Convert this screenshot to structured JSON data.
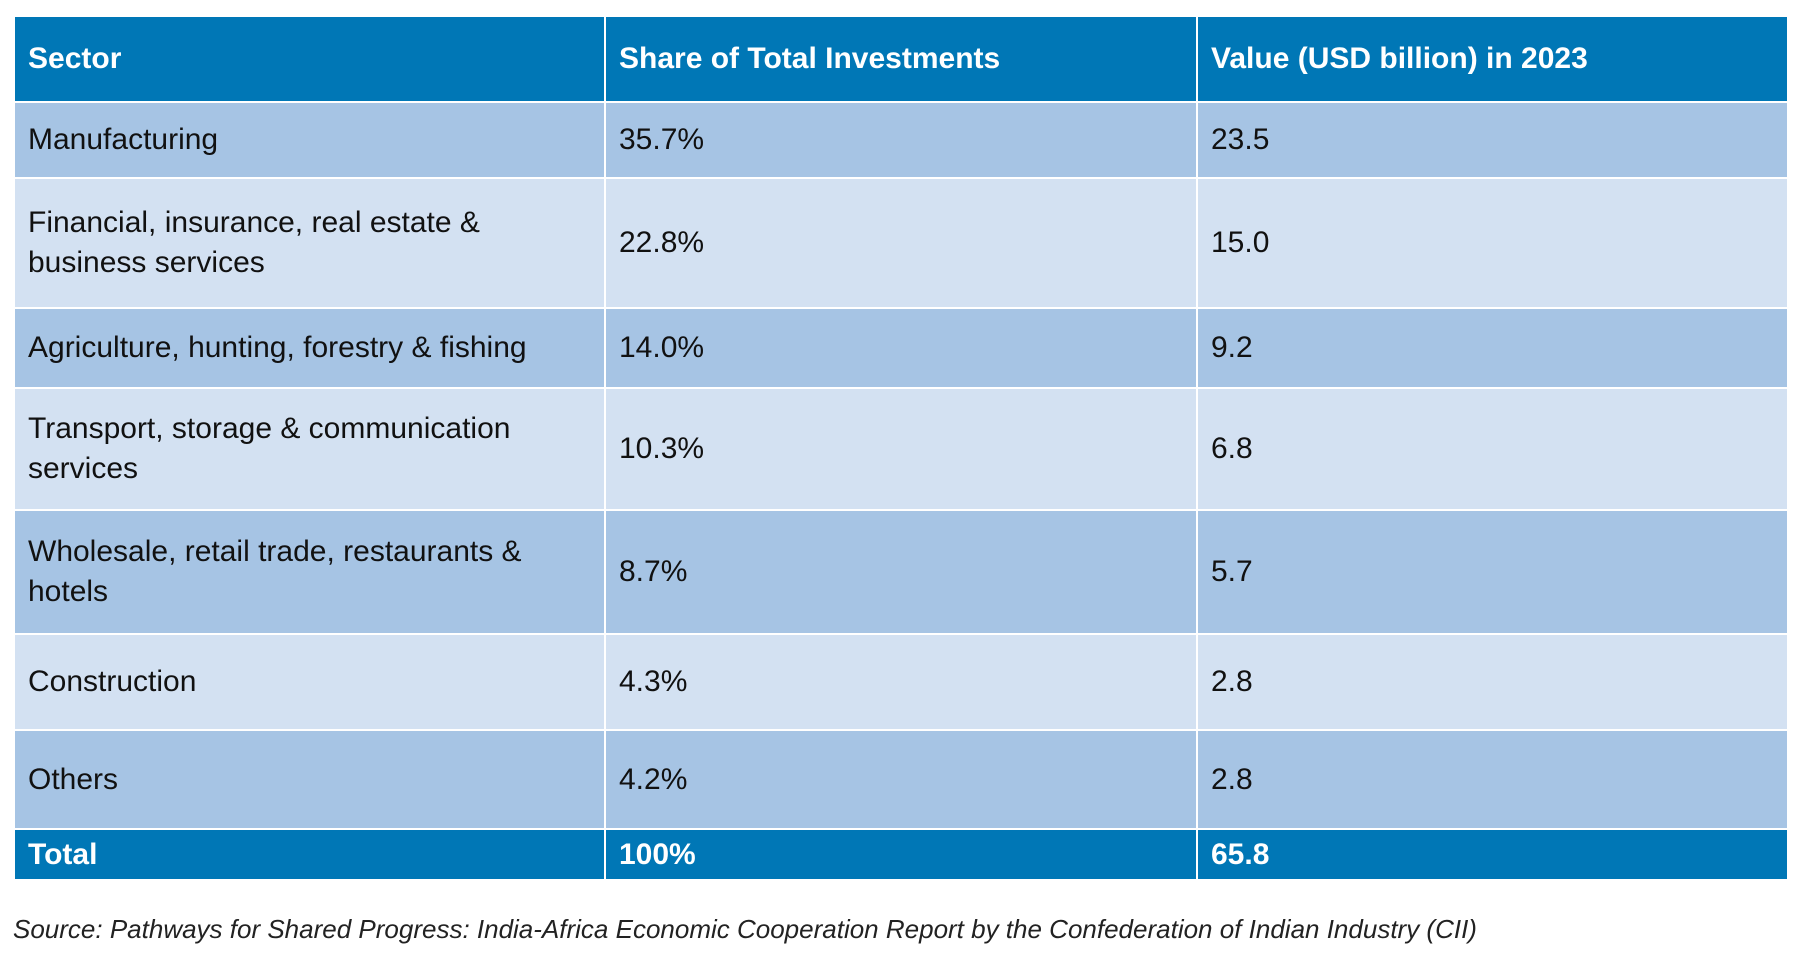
{
  "table": {
    "headers": [
      "Sector",
      "Share of Total Investments",
      "Value (USD billion) in 2023"
    ],
    "rows": [
      [
        "Manufacturing",
        "35.7%",
        "23.5"
      ],
      [
        "Financial, insurance, real estate & business services",
        "22.8%",
        "15.0"
      ],
      [
        "Agriculture, hunting, forestry & fishing",
        "14.0%",
        "9.2"
      ],
      [
        "Transport, storage & communication services",
        "10.3%",
        "6.8"
      ],
      [
        "Wholesale, retail trade, restaurants & hotels",
        "8.7%",
        "5.7"
      ],
      [
        "Construction",
        "4.3%",
        "2.8"
      ],
      [
        "Others",
        "4.2%",
        "2.8"
      ]
    ],
    "total": [
      "Total",
      "100%",
      "65.8"
    ]
  },
  "source": "Source: Pathways for Shared Progress: India-Africa Economic Cooperation Report by the Confederation of Indian Industry (CII)",
  "colors": {
    "header": "#0077b6",
    "row_dark": "#a6c4e4",
    "row_light": "#d3e1f2"
  }
}
